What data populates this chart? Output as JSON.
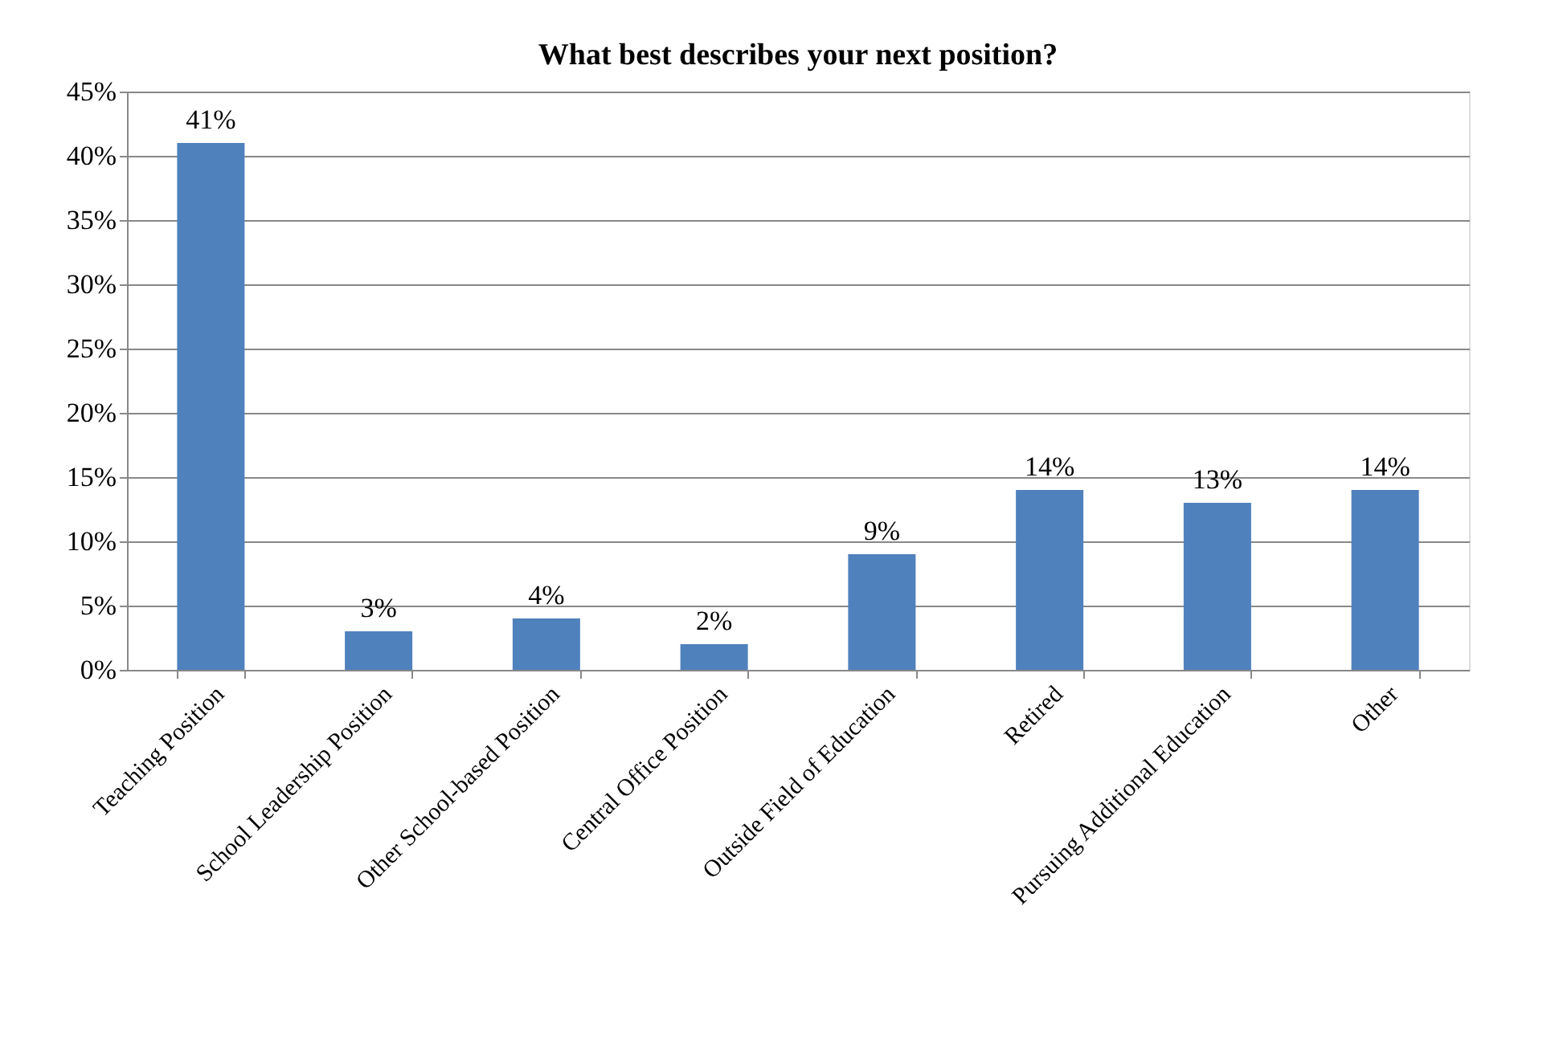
{
  "chart_data": {
    "type": "bar",
    "title": "What best describes your next position?",
    "categories": [
      "Teaching Position",
      "School Leadership Position",
      "Other School-based Position",
      "Central Office Position",
      "Outside Field of Education",
      "Retired",
      "Pursuing Additional Education",
      "Other"
    ],
    "values": [
      41,
      3,
      4,
      2,
      9,
      14,
      13,
      14
    ],
    "value_labels": [
      "41%",
      "3%",
      "4%",
      "2%",
      "9%",
      "14%",
      "13%",
      "14%"
    ],
    "color": "#4f81bd",
    "ylim": [
      0,
      45
    ],
    "yticks": [
      {
        "value": 0,
        "label": "0%"
      },
      {
        "value": 5,
        "label": "5%"
      },
      {
        "value": 10,
        "label": "10%"
      },
      {
        "value": 15,
        "label": "15%"
      },
      {
        "value": 20,
        "label": "20%"
      },
      {
        "value": 25,
        "label": "25%"
      },
      {
        "value": 30,
        "label": "30%"
      },
      {
        "value": 35,
        "label": "35%"
      },
      {
        "value": 40,
        "label": "40%"
      },
      {
        "value": 45,
        "label": "45%"
      }
    ],
    "grid": "y"
  }
}
